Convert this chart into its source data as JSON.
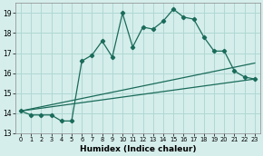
{
  "xlabel": "Humidex (Indice chaleur)",
  "xlim": [
    -0.5,
    23.5
  ],
  "ylim": [
    13,
    19.5
  ],
  "yticks": [
    13,
    14,
    15,
    16,
    17,
    18,
    19
  ],
  "xticks": [
    0,
    1,
    2,
    3,
    4,
    5,
    6,
    7,
    8,
    9,
    10,
    11,
    12,
    13,
    14,
    15,
    16,
    17,
    18,
    19,
    20,
    21,
    22,
    23
  ],
  "bg_color": "#d5eeeb",
  "grid_color": "#b0d8d4",
  "line_color": "#1a6b5a",
  "main_line": [
    14.1,
    13.9,
    13.9,
    13.9,
    13.6,
    13.6,
    16.6,
    16.9,
    17.6,
    16.8,
    19.0,
    17.3,
    18.3,
    18.2,
    18.6,
    19.2,
    18.8,
    18.7,
    17.8,
    17.1,
    17.1,
    16.1,
    15.8,
    15.7
  ],
  "trend_line1_x": [
    0,
    23
  ],
  "trend_line1_y": [
    14.1,
    15.7
  ],
  "trend_line2_x": [
    0,
    23
  ],
  "trend_line2_y": [
    14.1,
    16.5
  ]
}
